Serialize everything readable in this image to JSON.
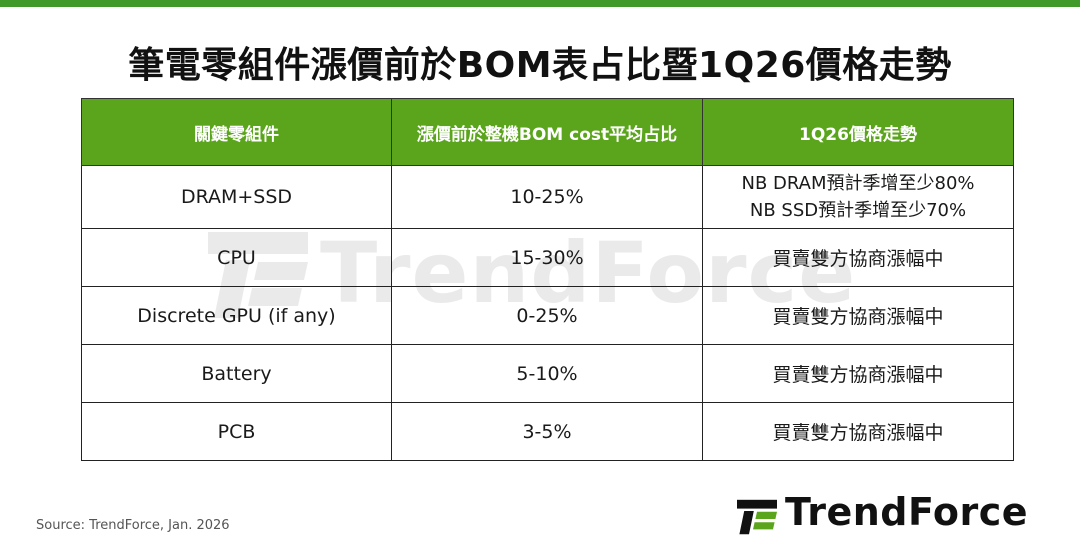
{
  "title": "筆電零組件漲價前於BOM表占比暨1Q26價格走勢",
  "source": "Source: TrendForce,  Jan. 2026",
  "brand": {
    "name": "TrendForce",
    "accent": "#5ba51c",
    "bar": "#3f9a2a"
  },
  "chart_data": {
    "type": "table",
    "columns": [
      "關鍵零組件",
      "漲價前於整機BOM cost平均占比",
      "1Q26價格走勢"
    ],
    "rows": [
      {
        "component": "DRAM+SSD",
        "share": "10-25%",
        "trend": [
          "NB DRAM預計季增至少80%",
          "NB SSD預計季增至少70%"
        ]
      },
      {
        "component": "CPU",
        "share": "15-30%",
        "trend": [
          "買賣雙方協商漲幅中"
        ]
      },
      {
        "component": "Discrete GPU (if any)",
        "share": "0-25%",
        "trend": [
          "買賣雙方協商漲幅中"
        ]
      },
      {
        "component": "Battery",
        "share": "5-10%",
        "trend": [
          "買賣雙方協商漲幅中"
        ]
      },
      {
        "component": "PCB",
        "share": "3-5%",
        "trend": [
          "買賣雙方協商漲幅中"
        ]
      }
    ]
  }
}
